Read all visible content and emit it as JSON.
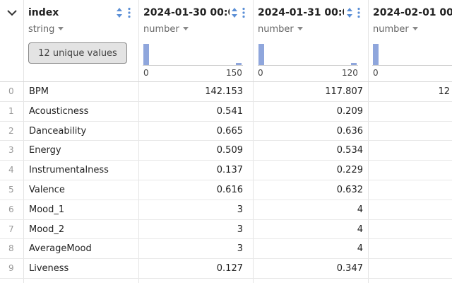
{
  "columns": [
    {
      "title": "index",
      "type": "string",
      "unique_label": "12 unique values"
    },
    {
      "title": "2024-01-30 00:0...",
      "type": "number",
      "hist_min": "0",
      "hist_max": "150",
      "bars": [
        0.95,
        0.08
      ]
    },
    {
      "title": "2024-01-31 00:0...",
      "type": "number",
      "hist_min": "0",
      "hist_max": "120",
      "bars": [
        0.95,
        0.08
      ]
    },
    {
      "title": "2024-02-01 00:0...",
      "type": "number",
      "hist_min": "0",
      "hist_max": "",
      "bars": [
        0.95
      ]
    }
  ],
  "rows": [
    {
      "n": "0",
      "index": "BPM",
      "c1": "142.153",
      "c2": "117.807",
      "c3": "12"
    },
    {
      "n": "1",
      "index": "Acousticness",
      "c1": "0.541",
      "c2": "0.209",
      "c3": ""
    },
    {
      "n": "2",
      "index": "Danceability",
      "c1": "0.665",
      "c2": "0.636",
      "c3": ""
    },
    {
      "n": "3",
      "index": "Energy",
      "c1": "0.509",
      "c2": "0.534",
      "c3": ""
    },
    {
      "n": "4",
      "index": "Instrumentalness",
      "c1": "0.137",
      "c2": "0.229",
      "c3": ""
    },
    {
      "n": "5",
      "index": "Valence",
      "c1": "0.616",
      "c2": "0.632",
      "c3": ""
    },
    {
      "n": "6",
      "index": "Mood_1",
      "c1": "3",
      "c2": "4",
      "c3": ""
    },
    {
      "n": "7",
      "index": "Mood_2",
      "c1": "3",
      "c2": "4",
      "c3": ""
    },
    {
      "n": "8",
      "index": "AverageMood",
      "c1": "3",
      "c2": "4",
      "c3": ""
    },
    {
      "n": "9",
      "index": "Liveness",
      "c1": "0.127",
      "c2": "0.347",
      "c3": ""
    }
  ],
  "colors": {
    "accent": "#8fa6dc",
    "icon": "#5b8fd6"
  }
}
